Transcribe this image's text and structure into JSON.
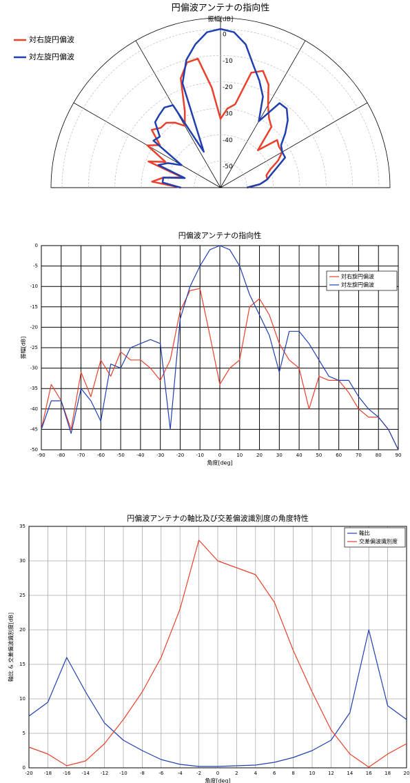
{
  "chart_data": [
    {
      "type": "polar",
      "title": "円偏波アンテナの指向性",
      "rlabel": "振幅[dB]",
      "rlim": [
        -60,
        0
      ],
      "rticks": [
        0,
        -10,
        -20,
        -30,
        -40,
        -50
      ],
      "thetaticks": [
        -90,
        -60,
        -30,
        0,
        30,
        60,
        90
      ],
      "x": [
        -90,
        -85,
        -80,
        -75,
        -70,
        -65,
        -60,
        -55,
        -50,
        -45,
        -40,
        -35,
        -30,
        -25,
        -20,
        -15,
        -10,
        -5,
        0,
        5,
        10,
        15,
        20,
        25,
        30,
        35,
        40,
        45,
        50,
        55,
        60,
        65,
        70,
        75,
        80,
        85,
        90
      ],
      "series": [
        {
          "name": "対右旋円偏波",
          "color": "#e8402a",
          "values": [
            -45,
            -34,
            -38,
            -45,
            -31,
            -37,
            -28,
            -32,
            -26,
            -28,
            -28,
            -30,
            -33,
            -28,
            -16,
            -11,
            -10.5,
            -22,
            -34,
            -30,
            -28,
            -15,
            -13,
            -17,
            -24,
            -28,
            -30,
            -40,
            -32,
            -33,
            -33,
            -36,
            -40,
            -42,
            -42,
            -45,
            -50
          ]
        },
        {
          "name": "対左旋円偏波",
          "color": "#1f3fb0",
          "values": [
            -45,
            -38,
            -38,
            -46,
            -35,
            -38,
            -43,
            -29,
            -30,
            -25,
            -24,
            -23,
            -24,
            -45,
            -18,
            -10,
            -5,
            -1,
            0,
            -1,
            -5,
            -12,
            -17,
            -22,
            -31,
            -21,
            -21,
            -24,
            -28,
            -32,
            -33,
            -33,
            -37,
            -40,
            -42,
            -45,
            -50
          ]
        }
      ]
    },
    {
      "type": "line",
      "title": "円偏波アンテナの指向性",
      "xlabel": "角度[deg]",
      "ylabel": "振幅[dB]",
      "xlim": [
        -90,
        90
      ],
      "xticks": [
        -90,
        -80,
        -70,
        -60,
        -50,
        -40,
        -30,
        -20,
        -10,
        0,
        10,
        20,
        30,
        40,
        50,
        60,
        70,
        80,
        90
      ],
      "ylim": [
        -50,
        0
      ],
      "yticks": [
        0,
        -5,
        -10,
        -15,
        -20,
        -25,
        -30,
        -35,
        -40,
        -45,
        -50
      ],
      "grid": true,
      "legend": "upper right",
      "x": [
        -90,
        -85,
        -80,
        -75,
        -70,
        -65,
        -60,
        -55,
        -50,
        -45,
        -40,
        -35,
        -30,
        -25,
        -20,
        -15,
        -10,
        -5,
        0,
        5,
        10,
        15,
        20,
        25,
        30,
        35,
        40,
        45,
        50,
        55,
        60,
        65,
        70,
        75,
        80,
        85,
        90
      ],
      "series": [
        {
          "name": "対右旋円偏波",
          "color": "#e8402a",
          "values": [
            -45,
            -34,
            -38,
            -45,
            -31,
            -37,
            -28,
            -32,
            -26,
            -28,
            -28,
            -30,
            -33,
            -28,
            -16,
            -11,
            -10.5,
            -22,
            -34,
            -30,
            -28,
            -15,
            -13,
            -17,
            -24,
            -28,
            -30,
            -40,
            -32,
            -33,
            -33,
            -36,
            -40,
            -42,
            -42,
            -45,
            -50
          ]
        },
        {
          "name": "対左旋円偏波",
          "color": "#1f3fb0",
          "values": [
            -45,
            -38,
            -38,
            -46,
            -35,
            -38,
            -43,
            -29,
            -30,
            -25,
            -24,
            -23,
            -24,
            -45,
            -18,
            -10,
            -5,
            -1,
            0,
            -1,
            -5,
            -12,
            -17,
            -22,
            -31,
            -21,
            -21,
            -24,
            -28,
            -32,
            -33,
            -33,
            -37,
            -40,
            -42,
            -45,
            -50
          ]
        }
      ]
    },
    {
      "type": "line",
      "title": "円偏波アンテナの軸比及び交差偏波識別度の角度特性",
      "xlabel": "角度[deg]",
      "ylabel": "軸比 & 交差偏波識別度[dB]",
      "xlim": [
        -20,
        20
      ],
      "xticks": [
        -20,
        -18,
        -16,
        -14,
        -12,
        -10,
        -8,
        -6,
        -4,
        -2,
        0,
        2,
        4,
        6,
        8,
        10,
        12,
        14,
        16,
        18,
        20
      ],
      "ylim": [
        0,
        35
      ],
      "yticks": [
        0,
        5,
        10,
        15,
        20,
        25,
        30,
        35
      ],
      "grid": true,
      "legend": "upper right",
      "x": [
        -20,
        -18,
        -16,
        -14,
        -12,
        -10,
        -8,
        -6,
        -4,
        -2,
        0,
        2,
        4,
        6,
        8,
        10,
        12,
        14,
        16,
        18,
        20
      ],
      "series": [
        {
          "name": "軸比",
          "color": "#1f3fb0",
          "values": [
            7.5,
            9.5,
            16,
            11,
            6.5,
            4,
            2.5,
            1.2,
            0.5,
            0.2,
            0.2,
            0.3,
            0.4,
            0.8,
            1.5,
            2.5,
            4,
            8,
            20,
            9,
            7
          ]
        },
        {
          "name": "交差偏波識別度",
          "color": "#e8402a",
          "values": [
            3,
            2,
            0.3,
            1,
            3.5,
            7,
            11,
            16,
            23,
            33,
            30,
            29,
            28,
            24,
            17,
            11,
            5.5,
            2,
            0.1,
            2,
            3.5
          ]
        }
      ]
    }
  ]
}
